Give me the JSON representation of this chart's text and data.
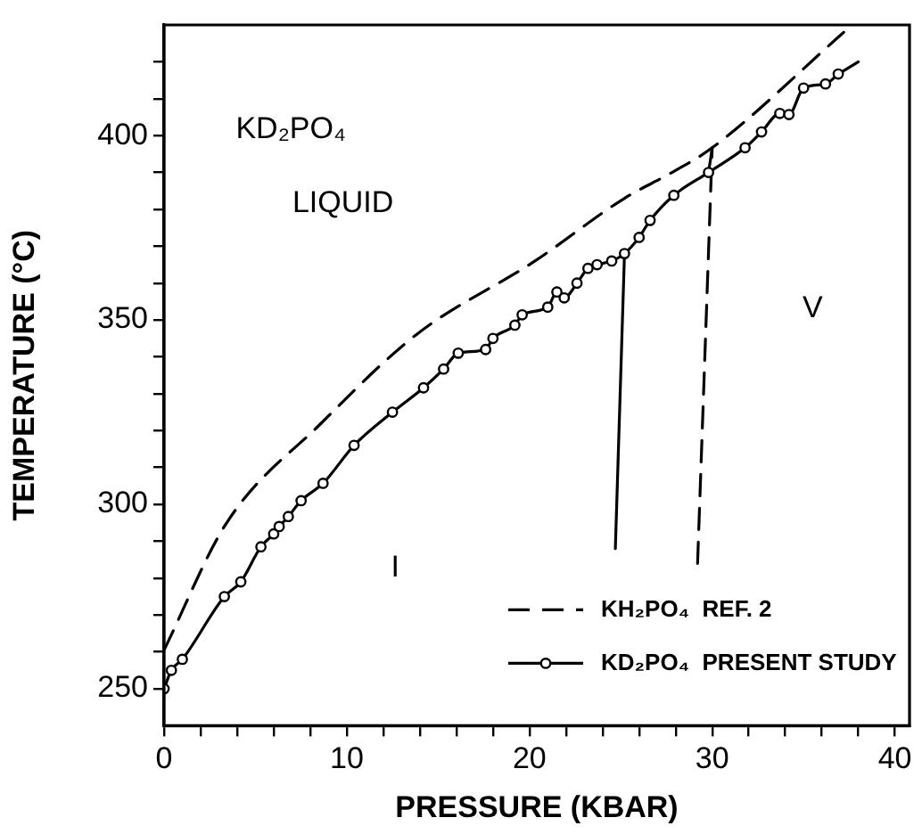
{
  "chart_data": {
    "type": "line",
    "xlabel": "PRESSURE (KBAR)",
    "ylabel": "TEMPERATURE (°C)",
    "xlim": [
      0,
      40.8
    ],
    "ylim": [
      240,
      430
    ],
    "xticks": [
      0,
      {
        "value": 2,
        "label": null
      },
      {
        "value": 4,
        "label": null
      },
      {
        "value": 6,
        "label": null
      },
      {
        "value": 8,
        "label": null
      },
      10,
      {
        "value": 12,
        "label": null
      },
      {
        "value": 14,
        "label": null
      },
      {
        "value": 16,
        "label": null
      },
      {
        "value": 18,
        "label": null
      },
      20,
      {
        "value": 22,
        "label": null
      },
      {
        "value": 24,
        "label": null
      },
      {
        "value": 26,
        "label": null
      },
      {
        "value": 28,
        "label": null
      },
      30,
      {
        "value": 32,
        "label": null
      },
      {
        "value": 34,
        "label": null
      },
      {
        "value": 36,
        "label": null
      },
      {
        "value": 38,
        "label": null
      },
      40
    ],
    "yticks": [
      250,
      {
        "value": 260,
        "label": null
      },
      {
        "value": 270,
        "label": null
      },
      {
        "value": 280,
        "label": null
      },
      {
        "value": 290,
        "label": null
      },
      300,
      {
        "value": 310,
        "label": null
      },
      {
        "value": 320,
        "label": null
      },
      {
        "value": 330,
        "label": null
      },
      {
        "value": 340,
        "label": null
      },
      350,
      {
        "value": 360,
        "label": null
      },
      {
        "value": 370,
        "label": null
      },
      {
        "value": 380,
        "label": null
      },
      {
        "value": 390,
        "label": null
      },
      400,
      {
        "value": 410,
        "label": null
      },
      {
        "value": 420,
        "label": null
      }
    ],
    "grid": false,
    "legend": "bottom right",
    "series": [
      {
        "name": "KH₂PO₄  REF. 2",
        "color": "#000000",
        "line_style": "dashed",
        "marker": "none",
        "x": [
          0,
          3.4,
          8.6,
          13.8,
          20.3,
          25.2,
          27.8,
          30,
          37.2
        ],
        "values": [
          260.5,
          294.8,
          322,
          346,
          366,
          383,
          390,
          396.7,
          428
        ]
      },
      {
        "name": "KD₂PO₄  PRESENT STUDY",
        "color": "#000000",
        "line_style": "solid",
        "marker": "circle",
        "x": [
          0,
          0.4,
          1,
          3.3,
          4.2,
          5.3,
          6.0,
          6.3,
          6.8,
          7.5,
          8.7,
          10.4,
          12.5,
          14.2,
          15.3,
          16.1,
          17.6,
          18.0,
          19.2,
          19.6,
          21.0,
          21.5,
          21.9,
          22.6,
          23.2,
          23.7,
          24.5,
          25.2,
          26.0,
          26.6,
          27.9,
          29.8,
          31.8,
          32.7,
          33.7,
          34.2,
          35.0,
          36.2,
          36.9
        ],
        "values": [
          250,
          255,
          258,
          275,
          279,
          288.5,
          292,
          294,
          296.7,
          301,
          305.7,
          316,
          325,
          331.6,
          336.7,
          341,
          342,
          345,
          348.6,
          351.4,
          353.5,
          357.6,
          356,
          360,
          364,
          365,
          366,
          368,
          372.4,
          377,
          383.8,
          390,
          396.7,
          401,
          406,
          405.7,
          412.9,
          414,
          416.7
        ]
      },
      {
        "color": "#000000",
        "line_style": "solid",
        "marker": "none",
        "x": [
          36.9,
          38.0
        ],
        "values": [
          416.7,
          420
        ]
      },
      {
        "color": "#000000",
        "line_style": "solid",
        "marker": "none",
        "x": [
          24.7,
          25.2
        ],
        "values": [
          288,
          368
        ]
      },
      {
        "color": "#000000",
        "line_style": "dashed",
        "marker": "none",
        "x": [
          29.2,
          30.0
        ],
        "values": [
          284,
          396.7
        ]
      },
      {
        "color": "#000000",
        "line_style": "solid",
        "marker": "none",
        "x": [
          29.8,
          30.0
        ],
        "values": [
          390,
          396.7
        ]
      }
    ],
    "annotations": [
      "KD₂PO₄",
      "LIQUID",
      "I",
      "V"
    ]
  }
}
